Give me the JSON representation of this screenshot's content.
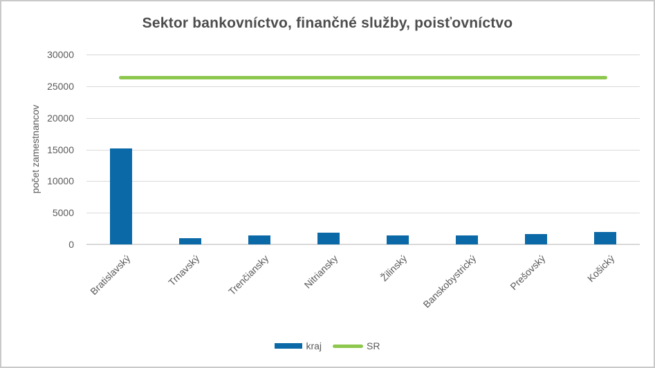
{
  "frame": {
    "title": "Sektor bankovníctvo, finančné služby, poisťovníctvo"
  },
  "legend": {
    "items": [
      {
        "label": "kraj",
        "marker": "bar-swatch",
        "color": "#0a69a6"
      },
      {
        "label": "SR",
        "marker": "line-swatch",
        "color": "#8dc74d"
      }
    ]
  },
  "chart_data": {
    "type": "bar",
    "title": "Sektor bankovníctvo, finančné služby, poisťovníctvo",
    "xlabel": "",
    "ylabel": "počet zamestnancov",
    "categories": [
      "Bratislavský",
      "Trnavský",
      "Trenčiansky",
      "Nitriansky",
      "Žilinský",
      "Banskobystrický",
      "Prešovský",
      "Košický"
    ],
    "series": [
      {
        "name": "kraj",
        "type": "bar",
        "color": "#0a69a6",
        "values": [
          15200,
          1000,
          1400,
          1900,
          1450,
          1450,
          1650,
          1950
        ]
      },
      {
        "name": "SR",
        "type": "line",
        "color": "#8dc74d",
        "value": 26300
      }
    ],
    "ylim": [
      0,
      30000
    ],
    "ytick_step": 5000,
    "ytick_labels": [
      "0",
      "5000",
      "10000",
      "15000",
      "20000",
      "25000",
      "30000"
    ],
    "grid": true,
    "legend_position": "bottom"
  },
  "colors": {
    "bar": "#0a69a6",
    "line": "#8dc74d",
    "grid": "#d9d9d9",
    "text": "#595959",
    "title": "#4d4d4d",
    "border": "#c9c9c9"
  }
}
